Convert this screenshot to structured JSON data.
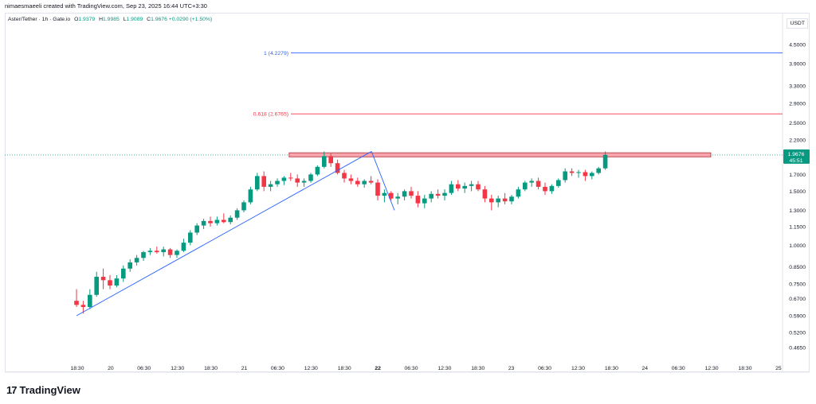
{
  "header": {
    "title": "nimaesmaeeli created with TradingView.com, Sep 23, 2025 16:44 UTC+3:30"
  },
  "legend": {
    "symbol": "Aster/Tether · 1h · Gate.io",
    "open_label": "O",
    "open": "1.9379",
    "high_label": "H",
    "high": "1.9985",
    "low_label": "L",
    "low": "1.9089",
    "close_label": "C",
    "close": "1.9676",
    "change": "+0.0290 (+1.50%)"
  },
  "price_axis": {
    "currency": "USDT"
  },
  "brand": {
    "name": "TradingView"
  },
  "colors": {
    "up": "#089981",
    "down": "#f23645",
    "fib_1": "#2962ff",
    "fib_0618": "#f23645",
    "trend": "#2962ff",
    "zone_fill": "#f7a6ad",
    "zone_border": "#b22833",
    "last_price_bg": "#089981"
  },
  "chart_data": {
    "type": "candlestick",
    "y_scale": "log",
    "y_ticks": [
      "4.5000",
      "3.9000",
      "3.3000",
      "2.9000",
      "2.5000",
      "2.2000",
      "1.7000",
      "1.5000",
      "1.3000",
      "1.1500",
      "1.0000",
      "0.8500",
      "0.7500",
      "0.6700",
      "0.5900",
      "0.5200",
      "0.4650"
    ],
    "x_ticks": [
      "18:30",
      "20",
      "06:30",
      "12:30",
      "18:30",
      "21",
      "06:30",
      "12:30",
      "18:30",
      "22",
      "06:30",
      "12:30",
      "18:30",
      "23",
      "06:30",
      "12:30",
      "18:30",
      "24",
      "06:30",
      "12:30",
      "18:30",
      "25"
    ],
    "fib_levels": [
      {
        "label": "1 (4.2279)",
        "price": 4.2279
      },
      {
        "label": "0.618 (2.6765)",
        "price": 2.6765
      }
    ],
    "zone": {
      "low": 1.94,
      "high": 2.0
    },
    "last_price": {
      "price": "1.9676",
      "countdown": "45:51"
    },
    "trend_points": [
      {
        "i": 0,
        "price": 0.59
      },
      {
        "i": 48,
        "price": 2.02
      },
      {
        "i": 70,
        "price": 1.3
      }
    ],
    "candles": [
      {
        "o": 0.66,
        "h": 0.72,
        "l": 0.63,
        "c": 0.64
      },
      {
        "o": 0.64,
        "h": 0.66,
        "l": 0.6,
        "c": 0.63
      },
      {
        "o": 0.63,
        "h": 0.72,
        "l": 0.62,
        "c": 0.69
      },
      {
        "o": 0.69,
        "h": 0.82,
        "l": 0.68,
        "c": 0.79
      },
      {
        "o": 0.79,
        "h": 0.84,
        "l": 0.72,
        "c": 0.77
      },
      {
        "o": 0.77,
        "h": 0.8,
        "l": 0.72,
        "c": 0.74
      },
      {
        "o": 0.74,
        "h": 0.8,
        "l": 0.73,
        "c": 0.78
      },
      {
        "o": 0.78,
        "h": 0.86,
        "l": 0.76,
        "c": 0.84
      },
      {
        "o": 0.84,
        "h": 0.9,
        "l": 0.82,
        "c": 0.88
      },
      {
        "o": 0.88,
        "h": 0.93,
        "l": 0.86,
        "c": 0.91
      },
      {
        "o": 0.91,
        "h": 0.96,
        "l": 0.89,
        "c": 0.95
      },
      {
        "o": 0.95,
        "h": 0.98,
        "l": 0.93,
        "c": 0.96
      },
      {
        "o": 0.96,
        "h": 0.99,
        "l": 0.94,
        "c": 0.95
      },
      {
        "o": 0.95,
        "h": 0.99,
        "l": 0.92,
        "c": 0.97
      },
      {
        "o": 0.97,
        "h": 0.98,
        "l": 0.91,
        "c": 0.93
      },
      {
        "o": 0.93,
        "h": 0.97,
        "l": 0.91,
        "c": 0.96
      },
      {
        "o": 0.96,
        "h": 1.05,
        "l": 0.95,
        "c": 1.02
      },
      {
        "o": 1.02,
        "h": 1.12,
        "l": 1.0,
        "c": 1.1
      },
      {
        "o": 1.1,
        "h": 1.18,
        "l": 1.08,
        "c": 1.16
      },
      {
        "o": 1.16,
        "h": 1.22,
        "l": 1.13,
        "c": 1.2
      },
      {
        "o": 1.2,
        "h": 1.24,
        "l": 1.15,
        "c": 1.18
      },
      {
        "o": 1.18,
        "h": 1.24,
        "l": 1.16,
        "c": 1.21
      },
      {
        "o": 1.21,
        "h": 1.27,
        "l": 1.18,
        "c": 1.19
      },
      {
        "o": 1.19,
        "h": 1.25,
        "l": 1.17,
        "c": 1.23
      },
      {
        "o": 1.23,
        "h": 1.32,
        "l": 1.21,
        "c": 1.3
      },
      {
        "o": 1.3,
        "h": 1.4,
        "l": 1.28,
        "c": 1.38
      },
      {
        "o": 1.38,
        "h": 1.55,
        "l": 1.36,
        "c": 1.52
      },
      {
        "o": 1.52,
        "h": 1.72,
        "l": 1.5,
        "c": 1.68
      },
      {
        "o": 1.68,
        "h": 1.74,
        "l": 1.5,
        "c": 1.55
      },
      {
        "o": 1.55,
        "h": 1.62,
        "l": 1.5,
        "c": 1.58
      },
      {
        "o": 1.58,
        "h": 1.65,
        "l": 1.55,
        "c": 1.62
      },
      {
        "o": 1.62,
        "h": 1.68,
        "l": 1.57,
        "c": 1.66
      },
      {
        "o": 1.66,
        "h": 1.72,
        "l": 1.62,
        "c": 1.65
      },
      {
        "o": 1.65,
        "h": 1.7,
        "l": 1.55,
        "c": 1.6
      },
      {
        "o": 1.6,
        "h": 1.65,
        "l": 1.55,
        "c": 1.62
      },
      {
        "o": 1.62,
        "h": 1.72,
        "l": 1.6,
        "c": 1.7
      },
      {
        "o": 1.7,
        "h": 1.82,
        "l": 1.68,
        "c": 1.8
      },
      {
        "o": 1.8,
        "h": 2.02,
        "l": 1.78,
        "c": 1.95
      },
      {
        "o": 1.95,
        "h": 1.99,
        "l": 1.8,
        "c": 1.85
      },
      {
        "o": 1.85,
        "h": 1.9,
        "l": 1.7,
        "c": 1.72
      },
      {
        "o": 1.72,
        "h": 1.76,
        "l": 1.6,
        "c": 1.65
      },
      {
        "o": 1.65,
        "h": 1.7,
        "l": 1.58,
        "c": 1.62
      },
      {
        "o": 1.62,
        "h": 1.66,
        "l": 1.55,
        "c": 1.58
      },
      {
        "o": 1.58,
        "h": 1.64,
        "l": 1.54,
        "c": 1.62
      },
      {
        "o": 1.62,
        "h": 1.68,
        "l": 1.58,
        "c": 1.6
      },
      {
        "o": 1.6,
        "h": 1.64,
        "l": 1.4,
        "c": 1.45
      },
      {
        "o": 1.45,
        "h": 1.52,
        "l": 1.38,
        "c": 1.48
      },
      {
        "o": 1.48,
        "h": 1.5,
        "l": 1.4,
        "c": 1.42
      },
      {
        "o": 1.42,
        "h": 1.48,
        "l": 1.36,
        "c": 1.44
      },
      {
        "o": 1.44,
        "h": 1.52,
        "l": 1.4,
        "c": 1.5
      },
      {
        "o": 1.5,
        "h": 1.55,
        "l": 1.42,
        "c": 1.45
      },
      {
        "o": 1.45,
        "h": 1.5,
        "l": 1.33,
        "c": 1.37
      },
      {
        "o": 1.37,
        "h": 1.46,
        "l": 1.32,
        "c": 1.42
      },
      {
        "o": 1.42,
        "h": 1.5,
        "l": 1.38,
        "c": 1.47
      },
      {
        "o": 1.47,
        "h": 1.52,
        "l": 1.42,
        "c": 1.45
      },
      {
        "o": 1.45,
        "h": 1.52,
        "l": 1.4,
        "c": 1.48
      },
      {
        "o": 1.48,
        "h": 1.62,
        "l": 1.46,
        "c": 1.58
      },
      {
        "o": 1.58,
        "h": 1.63,
        "l": 1.5,
        "c": 1.53
      },
      {
        "o": 1.53,
        "h": 1.6,
        "l": 1.48,
        "c": 1.56
      },
      {
        "o": 1.56,
        "h": 1.62,
        "l": 1.5,
        "c": 1.58
      },
      {
        "o": 1.58,
        "h": 1.62,
        "l": 1.5,
        "c": 1.52
      },
      {
        "o": 1.52,
        "h": 1.56,
        "l": 1.38,
        "c": 1.42
      },
      {
        "o": 1.42,
        "h": 1.46,
        "l": 1.3,
        "c": 1.38
      },
      {
        "o": 1.38,
        "h": 1.45,
        "l": 1.33,
        "c": 1.42
      },
      {
        "o": 1.42,
        "h": 1.48,
        "l": 1.36,
        "c": 1.39
      },
      {
        "o": 1.39,
        "h": 1.46,
        "l": 1.36,
        "c": 1.44
      },
      {
        "o": 1.44,
        "h": 1.55,
        "l": 1.42,
        "c": 1.52
      },
      {
        "o": 1.52,
        "h": 1.62,
        "l": 1.5,
        "c": 1.6
      },
      {
        "o": 1.6,
        "h": 1.65,
        "l": 1.55,
        "c": 1.62
      },
      {
        "o": 1.62,
        "h": 1.66,
        "l": 1.52,
        "c": 1.55
      },
      {
        "o": 1.55,
        "h": 1.6,
        "l": 1.46,
        "c": 1.5
      },
      {
        "o": 1.5,
        "h": 1.58,
        "l": 1.47,
        "c": 1.56
      },
      {
        "o": 1.56,
        "h": 1.65,
        "l": 1.54,
        "c": 1.63
      },
      {
        "o": 1.63,
        "h": 1.78,
        "l": 1.6,
        "c": 1.74
      },
      {
        "o": 1.74,
        "h": 1.78,
        "l": 1.68,
        "c": 1.72
      },
      {
        "o": 1.72,
        "h": 1.76,
        "l": 1.66,
        "c": 1.73
      },
      {
        "o": 1.73,
        "h": 1.76,
        "l": 1.62,
        "c": 1.68
      },
      {
        "o": 1.68,
        "h": 1.74,
        "l": 1.64,
        "c": 1.72
      },
      {
        "o": 1.72,
        "h": 1.8,
        "l": 1.7,
        "c": 1.78
      },
      {
        "o": 1.78,
        "h": 2.02,
        "l": 1.76,
        "c": 1.97
      }
    ]
  }
}
